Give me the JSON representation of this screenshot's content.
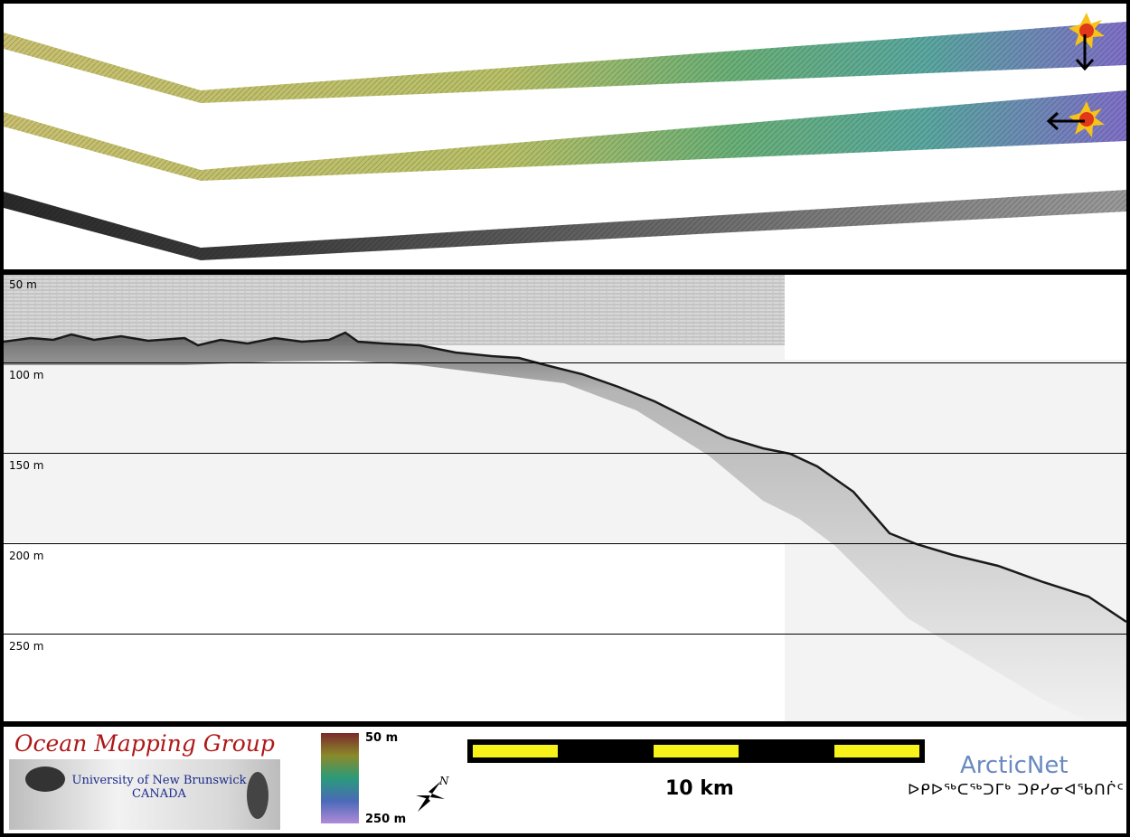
{
  "depth_labels": {
    "d50": "50 m",
    "d100": "100 m",
    "d150": "150 m",
    "d200": "200 m",
    "d250": "250 m"
  },
  "footer": {
    "omg_title": "Ocean Mapping Group",
    "omg_unb_line1": "University of New Brunswick",
    "omg_unb_line2": "CANADA",
    "colorbar_top": "50 m",
    "colorbar_bottom": "250 m",
    "north_letter": "N",
    "scale_label": "10 km",
    "arcticnet": "ArcticNet",
    "arcticnet_syllabics": "ᐅᑭᐅᖅᑕᖅᑐᒥᒃ ᑐᑭᓯᓂᐊᖃᑎᒌᑦ"
  },
  "colors": {
    "frame": "#000000",
    "strip_start": "#c9c070",
    "strip_end": "#8a78c8",
    "sun_outer": "#f7c21a",
    "sun_inner": "#e03818",
    "scale_yellow": "#f7f21a",
    "omg_red": "#b01818",
    "unb_blue": "#1a2a8a",
    "arcticnet_blue": "#6a8ac0"
  }
}
